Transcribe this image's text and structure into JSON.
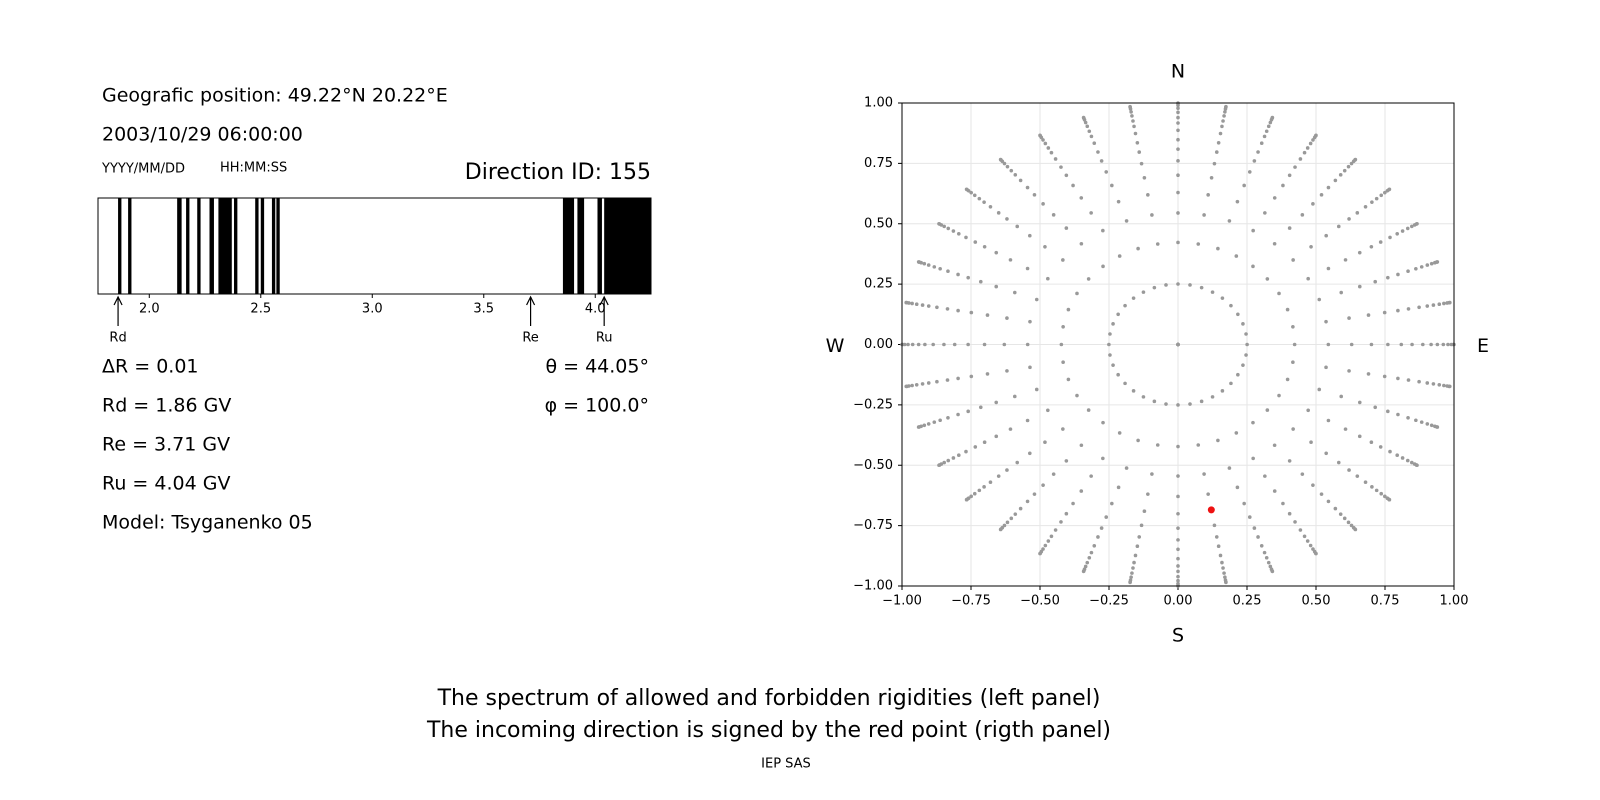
{
  "info": {
    "position": "Geografic position: 49.22°N 20.22°E",
    "datetime": "2003/10/29 06:00:00",
    "date_format": "YYYY/MM/DD",
    "time_format": "HH:MM:SS",
    "direction_id": "Direction ID: 155",
    "delta_r": "ΔR = 0.01",
    "rd": "Rd = 1.86 GV",
    "re": "Re = 3.71 GV",
    "ru": "Ru = 4.04 GV",
    "model": "Model: Tsyganenko 05",
    "theta": "θ = 44.05°",
    "phi": "φ = 100.0°"
  },
  "chart_data": [
    {
      "type": "spectrum",
      "color": "#000000",
      "xlim": [
        1.77,
        4.25
      ],
      "xticks": [
        {
          "value": 2,
          "label": "2.0"
        },
        {
          "value": 2.5,
          "label": "2.5"
        },
        {
          "value": 3,
          "label": "3.0"
        },
        {
          "value": 3.5,
          "label": "3.5"
        },
        {
          "value": 4,
          "label": "4.0"
        }
      ],
      "bands": [
        [
          1.86,
          1.875
        ],
        [
          1.905,
          1.92
        ],
        [
          2.125,
          2.145
        ],
        [
          2.165,
          2.18
        ],
        [
          2.215,
          2.23
        ],
        [
          2.27,
          2.29
        ],
        [
          2.31,
          2.37
        ],
        [
          2.38,
          2.395
        ],
        [
          2.475,
          2.49
        ],
        [
          2.5,
          2.515
        ],
        [
          2.55,
          2.565
        ],
        [
          2.57,
          2.585
        ],
        [
          3.855,
          3.905
        ],
        [
          3.92,
          3.95
        ],
        [
          4.01,
          4.03
        ],
        [
          4.04,
          4.25
        ]
      ],
      "markers": [
        {
          "label": "Rd",
          "value": 1.86
        },
        {
          "label": "Re",
          "value": 3.71
        },
        {
          "label": "Ru",
          "value": 4.04
        }
      ]
    },
    {
      "type": "scatter",
      "color": "#999999",
      "selected_color": "#ee1111",
      "grid": true,
      "xlim": [
        -1,
        1
      ],
      "ylim": [
        -1,
        1
      ],
      "xticks": [
        {
          "value": -1,
          "label": "−1.00"
        },
        {
          "value": -0.75,
          "label": "−0.75"
        },
        {
          "value": -0.5,
          "label": "−0.50"
        },
        {
          "value": -0.25,
          "label": "−0.25"
        },
        {
          "value": 0,
          "label": "0.00"
        },
        {
          "value": 0.25,
          "label": "0.25"
        },
        {
          "value": 0.5,
          "label": "0.50"
        },
        {
          "value": 0.75,
          "label": "0.75"
        },
        {
          "value": 1,
          "label": "1.00"
        }
      ],
      "yticks": [
        {
          "value": -1,
          "label": "−1.00"
        },
        {
          "value": -0.75,
          "label": "−0.75"
        },
        {
          "value": -0.5,
          "label": "−0.50"
        },
        {
          "value": -0.25,
          "label": "−0.25"
        },
        {
          "value": 0,
          "label": "0.00"
        },
        {
          "value": 0.25,
          "label": "0.25"
        },
        {
          "value": 0.5,
          "label": "0.50"
        },
        {
          "value": 0.75,
          "label": "0.75"
        },
        {
          "value": 1,
          "label": "1.00"
        }
      ],
      "compass": {
        "north": "N",
        "south": "S",
        "west": "W",
        "east": "E"
      },
      "zeniths": [
        0,
        14.5,
        25,
        33,
        39,
        44.5,
        49.5,
        54,
        58,
        62.5,
        66.5,
        70,
        74,
        78,
        82,
        86,
        90
      ],
      "azimuths": [
        0,
        10,
        20,
        30,
        40,
        50,
        60,
        70,
        80,
        90,
        100,
        110,
        120,
        130,
        140,
        150,
        160,
        170,
        180,
        190,
        200,
        210,
        220,
        230,
        240,
        250,
        260,
        270,
        280,
        290,
        300,
        310,
        320,
        330,
        340,
        350
      ],
      "selected": {
        "zenith": 44.05,
        "azimuth": 100.0
      }
    }
  ],
  "caption": [
    "The spectrum of allowed and forbidden rigidities (left panel)",
    "The incoming direction is signed by the red point (rigth panel)"
  ],
  "credit": "IEP SAS"
}
